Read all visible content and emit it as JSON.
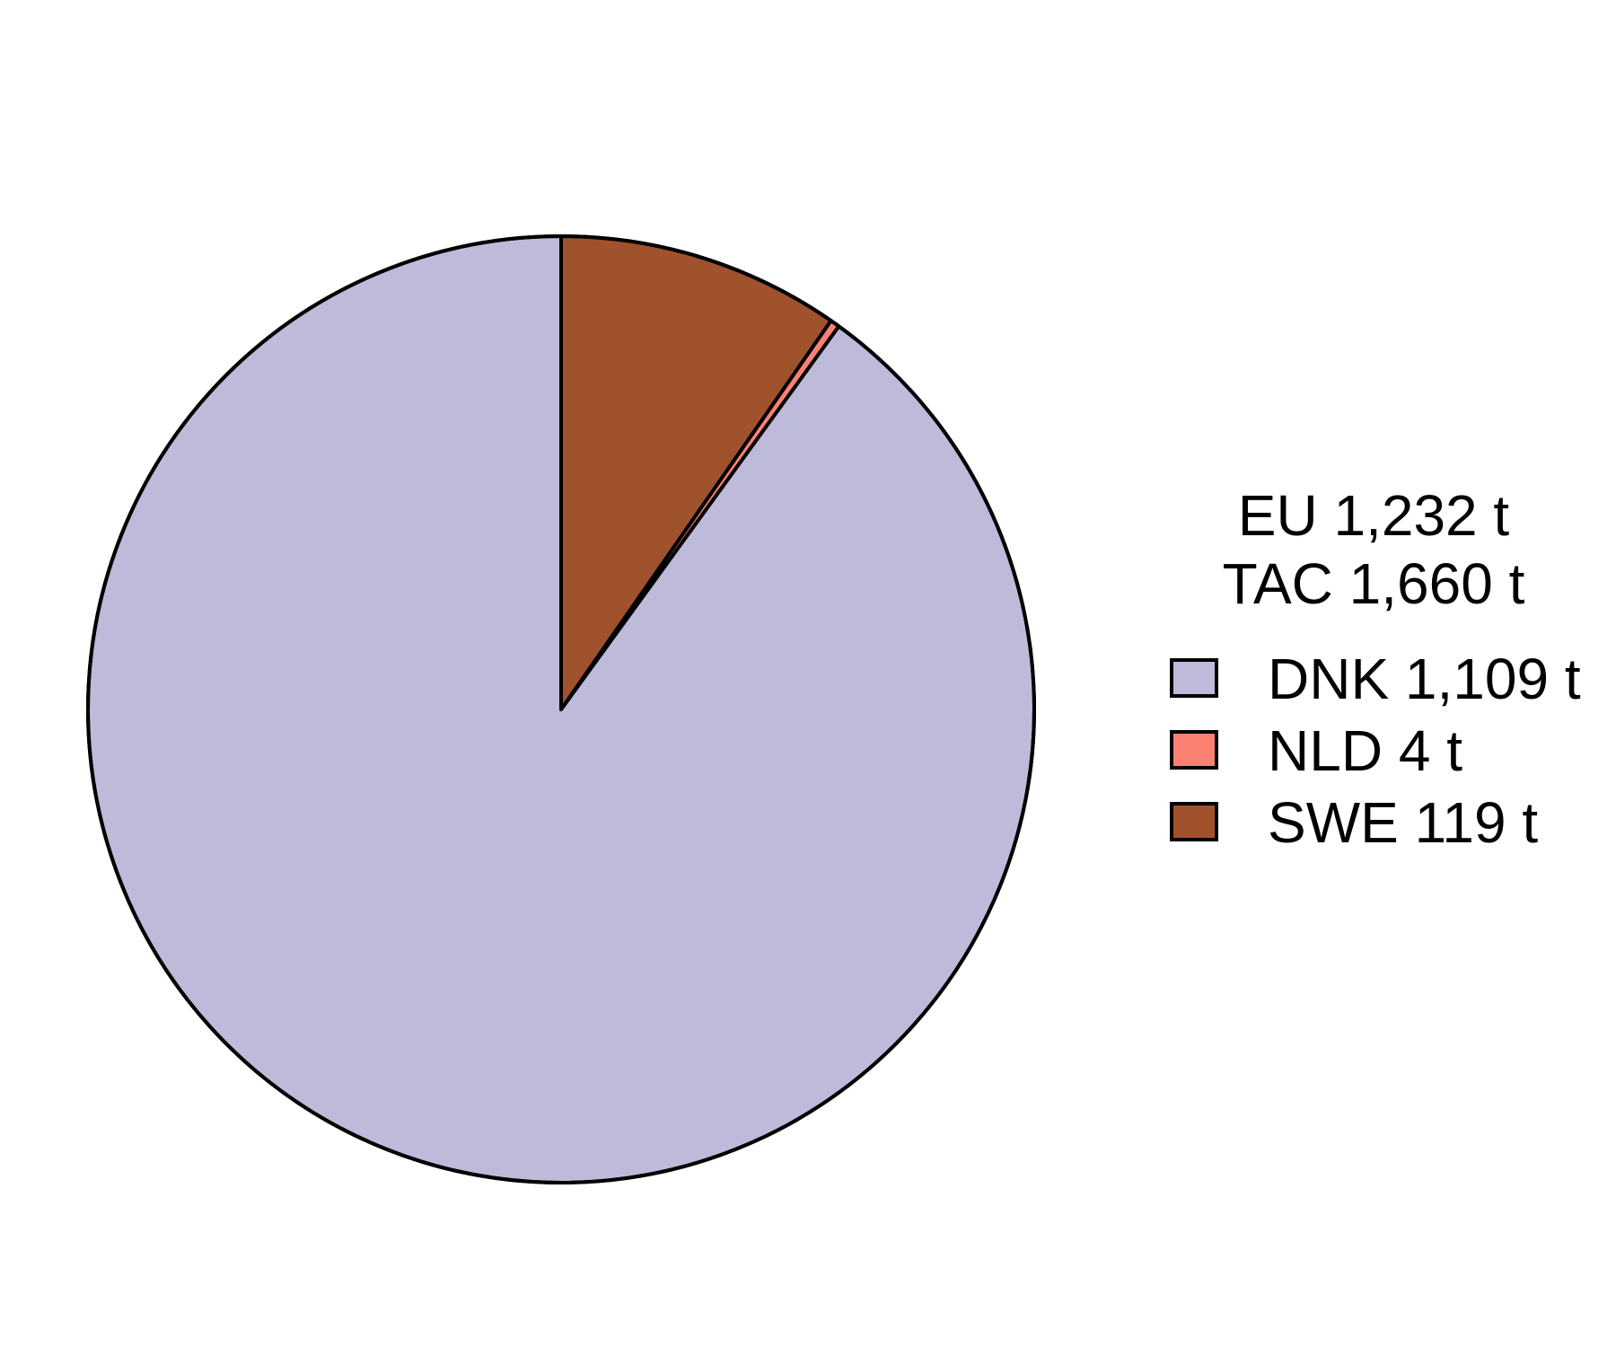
{
  "chart_data": {
    "type": "pie",
    "header_lines": [
      "EU 1,232 t",
      "TAC 1,660 t"
    ],
    "slices": [
      {
        "label": "DNK 1,109 t",
        "value": 1109,
        "color": "#BDBBD9"
      },
      {
        "label": "NLD 4 t",
        "value": 4,
        "color": "#FA8072"
      },
      {
        "label": "SWE 119 t",
        "value": 119,
        "color": "#A0522D"
      }
    ],
    "start": "12 o'clock",
    "direction": "counter-clockwise"
  }
}
